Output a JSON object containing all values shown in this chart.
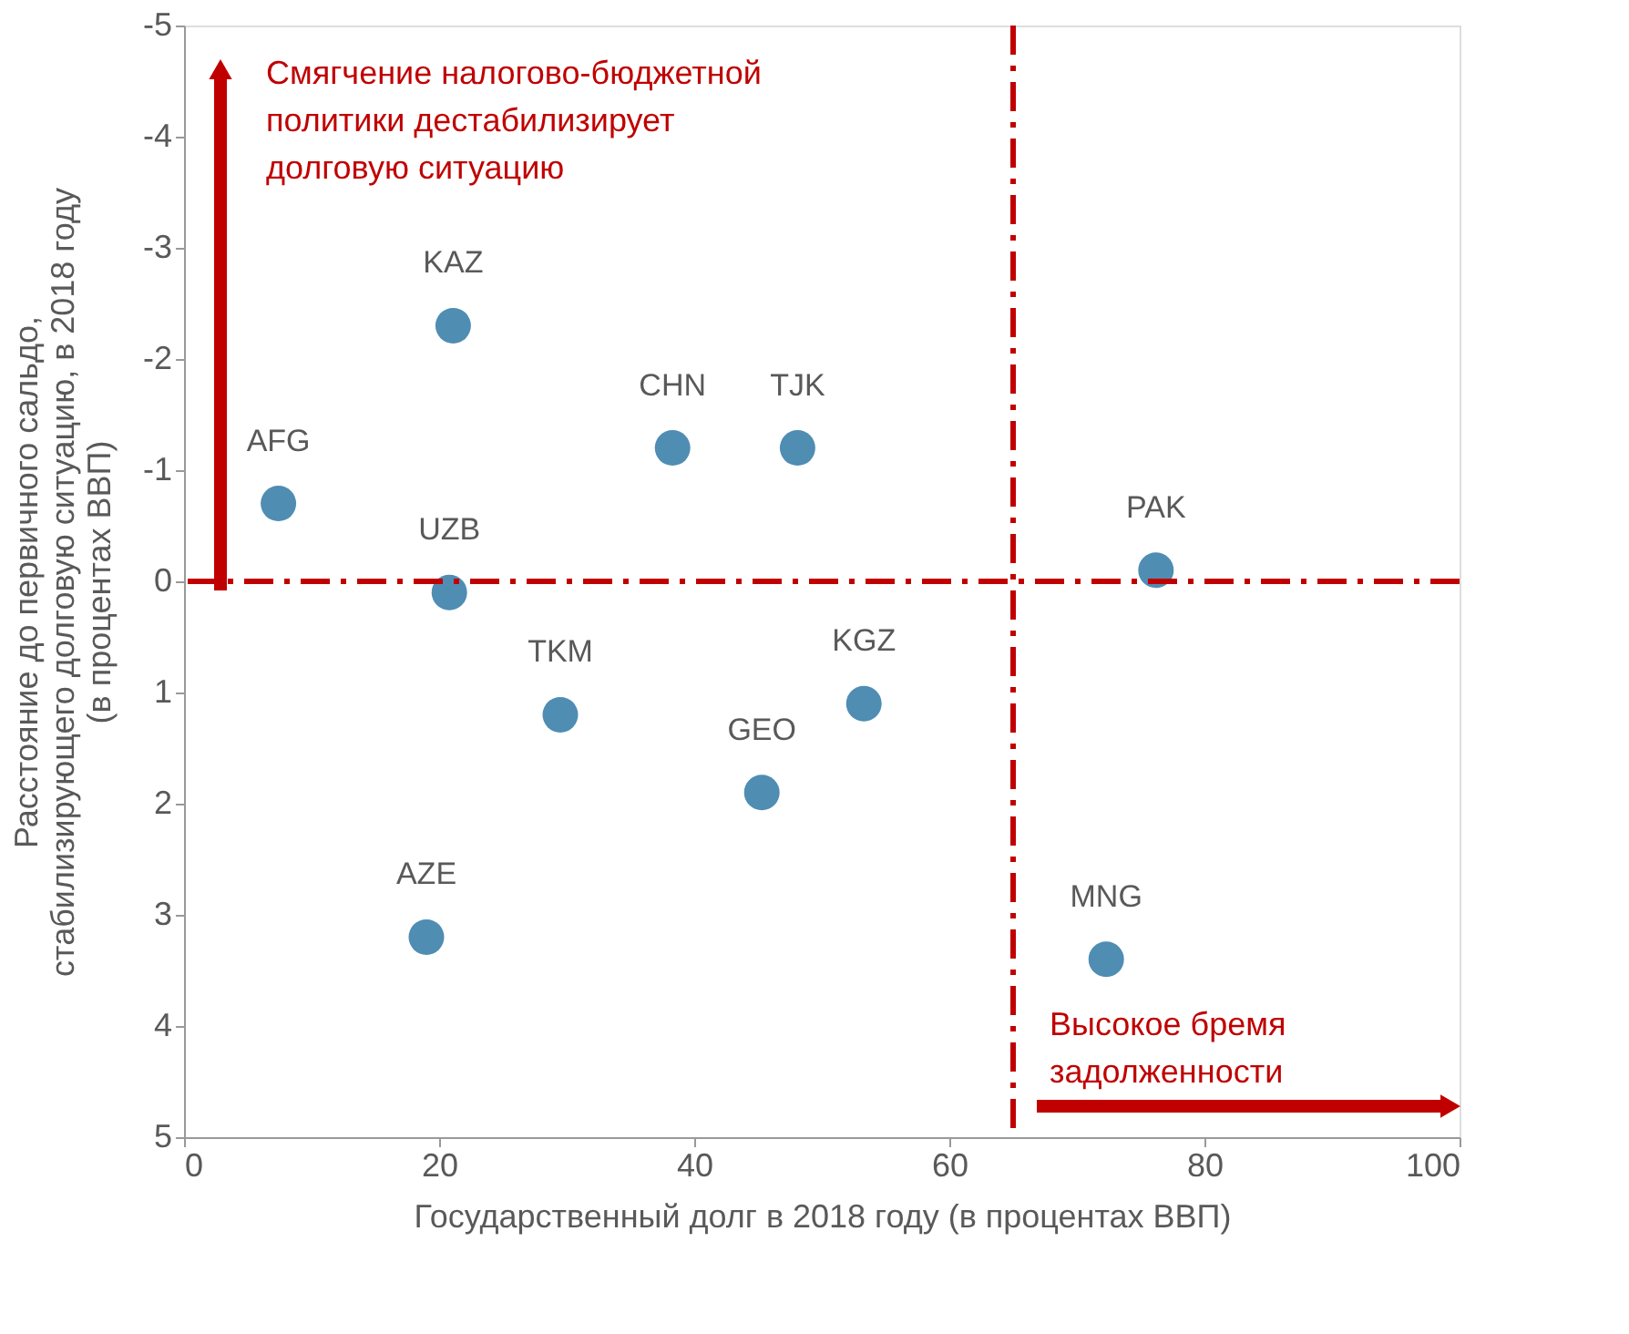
{
  "chart_data": {
    "type": "scatter",
    "xlabel": "Государственный долг в 2018 году (в процентах ВВП)",
    "ylabel": "Расстояние до первичного сальдо,\nстабилизирующего долговую ситуацию, в 2018 году\n(в процентах ВВП)",
    "x": [
      21.1,
      7.4,
      20.8,
      38.3,
      48.1,
      76.2,
      29.5,
      45.3,
      53.3,
      19.0,
      72.3
    ],
    "series": [
      {
        "color": "#4f8db3",
        "values": [
          -2.3,
          -0.7,
          0.1,
          -1.2,
          -1.2,
          -0.1,
          1.2,
          1.9,
          1.1,
          3.2,
          3.4
        ],
        "value_labels": [
          "KAZ",
          "AFG",
          "UZB",
          "CHN",
          "TJK",
          "PAK",
          "TKM",
          "GEO",
          "KGZ",
          "AZE",
          "MNG"
        ]
      }
    ],
    "xlim": [
      0,
      100
    ],
    "xticks": [
      0,
      20,
      40,
      60,
      80,
      100
    ],
    "ylim": [
      5,
      -5
    ],
    "yticks": [
      -5,
      -4,
      -3,
      -2,
      -1,
      0,
      1,
      2,
      3,
      4,
      5
    ],
    "ref_lines": [
      {
        "axis": "x",
        "value": 65,
        "color": "#c00000",
        "line_style": "dashdot"
      },
      {
        "axis": "y",
        "value": 0,
        "color": "#c00000",
        "line_style": "dashdot"
      }
    ],
    "annotations": [
      "Смягчение налогово-бюджетной\nполитики дестабилизирует\nдолговую ситуацию",
      "Высокое бремя\nзадолженности"
    ],
    "marker": "circle",
    "grid": false
  }
}
